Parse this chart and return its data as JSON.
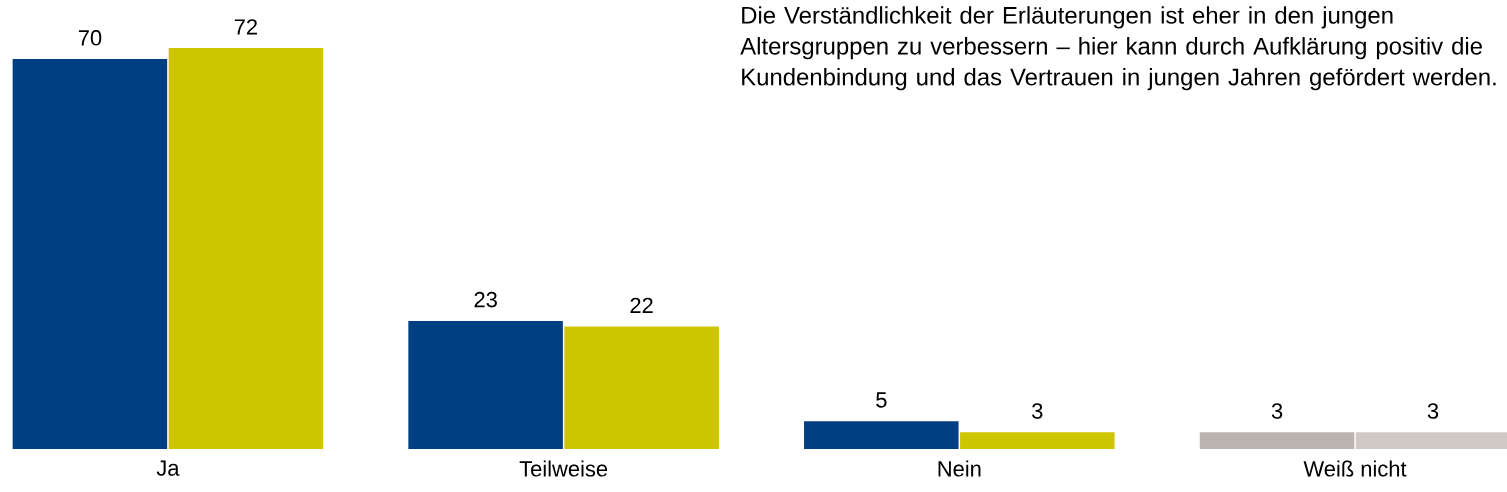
{
  "chart_data": {
    "type": "bar",
    "categories": [
      "Ja",
      "Teilweise",
      "Nein",
      "Weiß nicht"
    ],
    "series": [
      {
        "colors": [
          "#003f82",
          "#003f82",
          "#003f82",
          "#bbb3ae"
        ],
        "values": [
          70,
          23,
          5,
          3
        ]
      },
      {
        "colors": [
          "#cdc500",
          "#cdc500",
          "#cdc500",
          "#d0cac6"
        ],
        "values": [
          72,
          22,
          3,
          3
        ]
      }
    ],
    "data_labels": true,
    "annotations": [
      "Die Verständlichkeit der Erläuterungen ist eher in den jungen Altersgruppen zu verbessern – hier kann durch Aufklärung positiv die Kundenbindung und das Vertrauen in jungen Jahren gefördert werden."
    ]
  }
}
